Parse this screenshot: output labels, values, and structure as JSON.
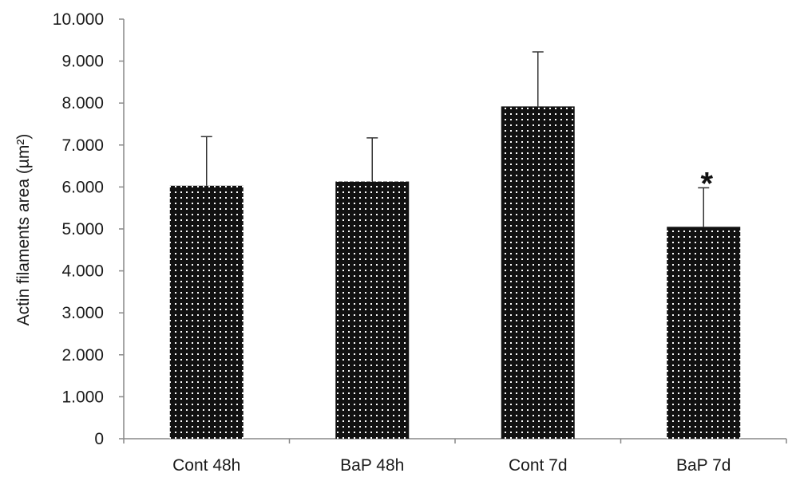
{
  "chart_data": {
    "type": "bar",
    "title": "",
    "xlabel": "",
    "ylabel": "Actin filaments area (µm²)",
    "ylim": [
      0,
      10
    ],
    "yticks": [
      0,
      1,
      2,
      3,
      4,
      5,
      6,
      7,
      8,
      9,
      10
    ],
    "ytick_labels": [
      "0",
      "1.000",
      "2.000",
      "3.000",
      "4.000",
      "5.000",
      "6.000",
      "7.000",
      "8.000",
      "9.000",
      "10.000"
    ],
    "categories": [
      "Cont 48h",
      "BaP 48h",
      "Cont 7d",
      "BaP 7d"
    ],
    "values": [
      6.03,
      6.13,
      7.92,
      5.05
    ],
    "error_upper": [
      1.17,
      1.04,
      1.3,
      0.93
    ],
    "annotations": [
      "",
      "",
      "",
      "*"
    ],
    "grid": false,
    "legend": "none",
    "colors": {
      "bar": "#111111",
      "dot": "#ffffff",
      "axis": "#888888",
      "error": "#333333"
    }
  }
}
